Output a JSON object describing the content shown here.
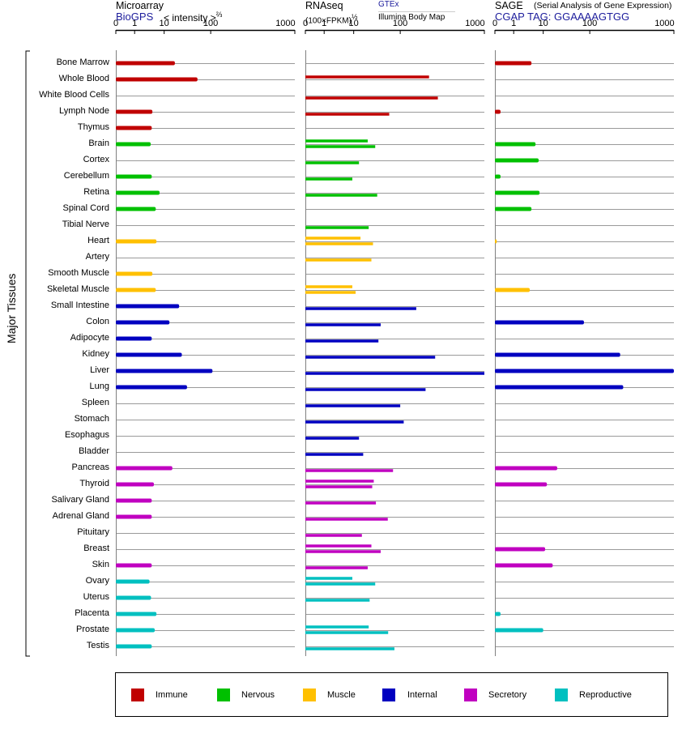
{
  "panels": {
    "microarray": {
      "title": "Microarray",
      "source": "BioGPS",
      "unit": "< intensity >",
      "unit_exp": "⅔"
    },
    "rnaseq": {
      "title": "RNAseq",
      "title_exp": "½",
      "unit": "(100×FPKM)",
      "source_a": "GTEx",
      "source_b": "Illumina Body Map"
    },
    "sage": {
      "title": "SAGE",
      "subtitle": "(Serial Analysis of Gene Expression)",
      "tag": "CGAP TAG: GGAAAAGTGG"
    }
  },
  "axis_ticks": [
    "0",
    "1",
    "10",
    "100",
    "1000"
  ],
  "y_axis_label": "Major Tissues",
  "legend": [
    {
      "label": "Immune",
      "color": "#c00000"
    },
    {
      "label": "Nervous",
      "color": "#00c000"
    },
    {
      "label": "Muscle",
      "color": "#ffc000"
    },
    {
      "label": "Internal",
      "color": "#0000c0"
    },
    {
      "label": "Secretory",
      "color": "#c000c0"
    },
    {
      "label": "Reproductive",
      "color": "#00c0c0"
    }
  ],
  "chart_data": {
    "type": "bar",
    "scale": "log-like (0, 1, 10, 100, 1000)",
    "axis_range": [
      0,
      1000
    ],
    "categories": [
      "Bone Marrow",
      "Whole Blood",
      "White Blood Cells",
      "Lymph Node",
      "Thymus",
      "Brain",
      "Cortex",
      "Cerebellum",
      "Retina",
      "Spinal Cord",
      "Tibial Nerve",
      "Heart",
      "Artery",
      "Smooth Muscle",
      "Skeletal Muscle",
      "Small Intestine",
      "Colon",
      "Adipocyte",
      "Kidney",
      "Liver",
      "Lung",
      "Spleen",
      "Stomach",
      "Esophagus",
      "Bladder",
      "Pancreas",
      "Thyroid",
      "Salivary Gland",
      "Adrenal Gland",
      "Pituitary",
      "Breast",
      "Skin",
      "Ovary",
      "Uterus",
      "Placenta",
      "Prostate",
      "Testis"
    ],
    "groups": [
      "Immune",
      "Immune",
      "Immune",
      "Immune",
      "Immune",
      "Nervous",
      "Nervous",
      "Nervous",
      "Nervous",
      "Nervous",
      "Nervous",
      "Muscle",
      "Muscle",
      "Muscle",
      "Muscle",
      "Internal",
      "Internal",
      "Internal",
      "Internal",
      "Internal",
      "Internal",
      "Internal",
      "Internal",
      "Internal",
      "Internal",
      "Secretory",
      "Secretory",
      "Secretory",
      "Secretory",
      "Secretory",
      "Secretory",
      "Secretory",
      "Reproductive",
      "Reproductive",
      "Reproductive",
      "Reproductive",
      "Reproductive"
    ],
    "series": [
      {
        "name": "Microarray (BioGPS)",
        "values": [
          17,
          52,
          null,
          4,
          3.8,
          3.5,
          null,
          3.8,
          7,
          5.2,
          null,
          5.5,
          null,
          4,
          5.2,
          21,
          13,
          3.8,
          24,
          105,
          31,
          null,
          null,
          null,
          null,
          15,
          4.5,
          3.8,
          3.8,
          null,
          null,
          3.8,
          3.2,
          3.6,
          5.5,
          4.8,
          3.8
        ]
      },
      {
        "name": "RNAseq (GTEx)",
        "values": [
          null,
          220,
          null,
          null,
          null,
          20,
          null,
          null,
          null,
          null,
          null,
          14,
          null,
          null,
          9,
          null,
          null,
          null,
          null,
          null,
          null,
          null,
          null,
          null,
          null,
          null,
          27,
          null,
          null,
          null,
          24,
          null,
          9,
          null,
          null,
          21,
          null
        ]
      },
      {
        "name": "RNAseq (Illumina Body Map)",
        "values": [
          null,
          null,
          280,
          58,
          null,
          29,
          13,
          9,
          32,
          null,
          21,
          26,
          24,
          null,
          11,
          155,
          38,
          34,
          260,
          1000,
          200,
          100,
          110,
          13,
          16,
          70,
          25,
          30,
          54,
          15,
          38,
          20,
          29,
          22,
          null,
          55,
          75
        ]
      },
      {
        "name": "SAGE (CGAP)",
        "values": [
          4,
          null,
          null,
          0.3,
          null,
          5.5,
          7,
          0.3,
          7.5,
          4,
          null,
          0.1,
          null,
          null,
          3.5,
          null,
          75,
          null,
          230,
          1000,
          250,
          null,
          null,
          null,
          null,
          20,
          12,
          null,
          null,
          null,
          11,
          16,
          null,
          null,
          0.3,
          10,
          null
        ]
      }
    ]
  }
}
